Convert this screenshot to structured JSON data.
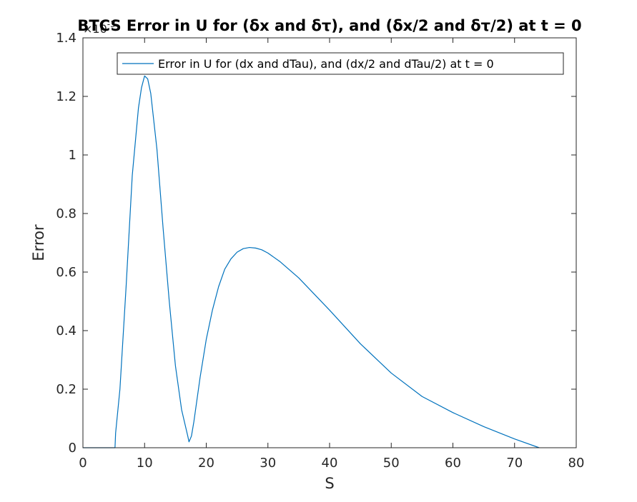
{
  "chart_data": {
    "type": "line",
    "title": "BTCS Error in U for (δx and δτ), and (δx/2 and δτ/2) at t = 0",
    "xlabel": "S",
    "ylabel": "Error",
    "y_exponent_base": "×10",
    "y_exponent_power": "-3",
    "xlim": [
      0,
      80
    ],
    "ylim": [
      0,
      1.4
    ],
    "x_ticks": [
      0,
      10,
      20,
      30,
      40,
      50,
      60,
      70,
      80
    ],
    "x_tick_labels": [
      "0",
      "10",
      "20",
      "30",
      "40",
      "50",
      "60",
      "70",
      "80"
    ],
    "y_ticks": [
      0,
      0.2,
      0.4,
      0.6,
      0.8,
      1.0,
      1.2,
      1.4
    ],
    "y_tick_labels": [
      "0",
      "0.2",
      "0.4",
      "0.6",
      "0.8",
      "1",
      "1.2",
      "1.4"
    ],
    "grid": false,
    "legend_position": "top-right",
    "colors": {
      "series": "#0072BD",
      "axis": "#262626",
      "box": "#000000"
    },
    "series": [
      {
        "name": "Error in U for (dx and dTau), and (dx/2 and dTau/2) at t = 0",
        "x": [
          0,
          5.2,
          5.3,
          6,
          7,
          8,
          9,
          9.5,
          10,
          10.5,
          11,
          12,
          13,
          14,
          15,
          16,
          17,
          17.2,
          17.6,
          18,
          19,
          20,
          21,
          22,
          23,
          24,
          25,
          26,
          27,
          28,
          29,
          30,
          32,
          35,
          40,
          45,
          50,
          55,
          60,
          65,
          70,
          74
        ],
        "values": [
          0,
          0,
          0.05,
          0.2,
          0.55,
          0.93,
          1.16,
          1.23,
          1.27,
          1.26,
          1.21,
          1.02,
          0.75,
          0.5,
          0.28,
          0.13,
          0.04,
          0.02,
          0.04,
          0.09,
          0.24,
          0.37,
          0.47,
          0.55,
          0.61,
          0.645,
          0.668,
          0.68,
          0.684,
          0.682,
          0.676,
          0.665,
          0.635,
          0.58,
          0.47,
          0.355,
          0.255,
          0.175,
          0.12,
          0.072,
          0.03,
          0
        ]
      }
    ]
  }
}
